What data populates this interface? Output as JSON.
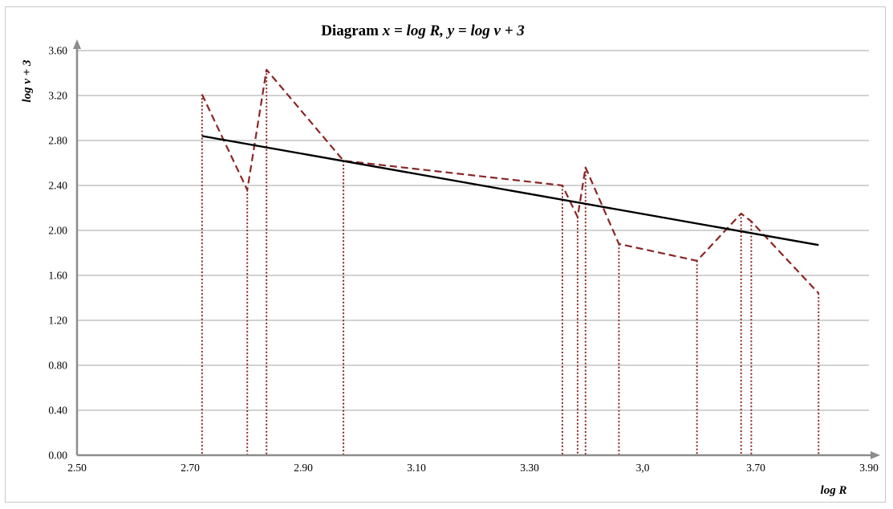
{
  "chart_data": {
    "type": "line",
    "title_prefix": "Diagram ",
    "title_formula": "x = log R, y = log v + 3",
    "xlabel": "log R",
    "ylabel": "log v + 3",
    "xlim": [
      2.5,
      3.9
    ],
    "ylim": [
      0,
      3.6
    ],
    "x_tick_labels": [
      "2.50",
      "2.70",
      "2.90",
      "3.10",
      "3.30",
      "3,0",
      "3.70",
      "3.90"
    ],
    "y_tick_labels": [
      "0.00",
      "0.40",
      "0.80",
      "1.20",
      "1.60",
      "2.00",
      "2.40",
      "2.80",
      "3.20",
      "3.60"
    ],
    "grid": "horizontal",
    "series": [
      {
        "style": "dashed",
        "color": "#8b2525",
        "x": [
          2.721,
          2.801,
          2.835,
          2.971,
          3.358,
          3.385,
          3.399,
          3.458,
          3.596,
          3.674,
          3.692,
          3.811
        ],
        "y": [
          3.21,
          2.36,
          3.43,
          2.62,
          2.4,
          2.12,
          2.56,
          1.88,
          1.73,
          2.15,
          2.08,
          1.44
        ]
      },
      {
        "style": "solid",
        "color": "#000000",
        "x": [
          2.721,
          3.811
        ],
        "y": [
          2.84,
          1.87
        ]
      }
    ],
    "drop_lines": {
      "style": "dotted",
      "color": "#8b2525"
    },
    "axis_color": "#8c8c8c",
    "grid_color": "#a6a6a6"
  }
}
